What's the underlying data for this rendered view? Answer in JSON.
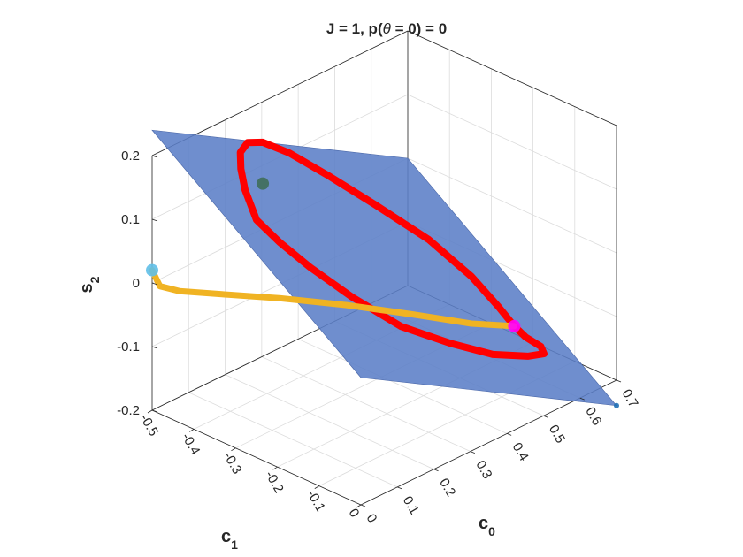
{
  "chart_data": {
    "type": "surface3d",
    "title": {
      "prefix": "J = 1, p(",
      "symbol": "θ",
      "suffix": " = 0) = 0"
    },
    "xlabel": {
      "base": "c",
      "sub": "0"
    },
    "ylabel": {
      "base": "c",
      "sub": "1"
    },
    "zlabel": {
      "base": "s",
      "sub": "2"
    },
    "xlim": [
      0,
      0.7
    ],
    "ylim": [
      -0.5,
      0
    ],
    "zlim": [
      -0.2,
      0.2
    ],
    "xticks": [
      "0",
      "0.1",
      "0.2",
      "0.3",
      "0.4",
      "0.5",
      "0.6",
      "0.7"
    ],
    "yticks": [
      "-0.5",
      "-0.4",
      "-0.3",
      "-0.2",
      "-0.1",
      "0"
    ],
    "zticks": [
      "-0.2",
      "-0.1",
      "0",
      "0.1",
      "0.2"
    ],
    "grid": true,
    "surface": {
      "color": "#5b7ec7",
      "corners": [
        {
          "c0": 0.0,
          "c1": 0.0,
          "s2": 0.0
        },
        {
          "c0": 0.0,
          "c1": -0.5,
          "s2": 0.24
        },
        {
          "c0": 0.7,
          "c1": -0.5,
          "s2": 0.0
        },
        {
          "c0": 0.7,
          "c1": 0.0,
          "s2": -0.24
        }
      ]
    },
    "series": [
      {
        "color": "#ff0000",
        "style": "loop",
        "points": [
          [
            0.5,
            -0.07,
            -0.08
          ],
          [
            0.48,
            -0.09,
            -0.05
          ],
          [
            0.44,
            -0.12,
            0.0
          ],
          [
            0.38,
            -0.17,
            0.06
          ],
          [
            0.3,
            -0.23,
            0.12
          ],
          [
            0.23,
            -0.28,
            0.17
          ],
          [
            0.17,
            -0.32,
            0.21
          ],
          [
            0.12,
            -0.34,
            0.235
          ],
          [
            0.09,
            -0.35,
            0.24
          ],
          [
            0.07,
            -0.35,
            0.23
          ],
          [
            0.06,
            -0.34,
            0.21
          ],
          [
            0.06,
            -0.33,
            0.18
          ],
          [
            0.08,
            -0.32,
            0.13
          ],
          [
            0.12,
            -0.3,
            0.09
          ],
          [
            0.18,
            -0.28,
            0.04
          ],
          [
            0.26,
            -0.25,
            -0.02
          ],
          [
            0.35,
            -0.21,
            -0.08
          ],
          [
            0.44,
            -0.17,
            -0.12
          ],
          [
            0.51,
            -0.13,
            -0.145
          ],
          [
            0.56,
            -0.09,
            -0.15
          ],
          [
            0.57,
            -0.06,
            -0.14
          ],
          [
            0.55,
            -0.05,
            -0.12
          ],
          [
            0.52,
            -0.06,
            -0.1
          ],
          [
            0.5,
            -0.07,
            -0.08
          ]
        ]
      },
      {
        "color": "#f0b323",
        "style": "line",
        "points": [
          [
            0.0,
            -0.5,
            0.02
          ],
          [
            0.01,
            -0.49,
            -0.005
          ],
          [
            0.04,
            -0.47,
            -0.015
          ],
          [
            0.1,
            -0.42,
            -0.022
          ],
          [
            0.18,
            -0.35,
            -0.03
          ],
          [
            0.27,
            -0.27,
            -0.042
          ],
          [
            0.36,
            -0.19,
            -0.058
          ],
          [
            0.44,
            -0.12,
            -0.074
          ],
          [
            0.5,
            -0.07,
            -0.08
          ]
        ]
      }
    ],
    "markers": [
      {
        "color": "#5fbfe8",
        "point": [
          0.0,
          -0.5,
          0.02
        ]
      },
      {
        "color": "#3f6e5a",
        "point": [
          0.12,
          -0.34,
          0.17
        ]
      },
      {
        "color": "#ff00ff",
        "point": [
          0.5,
          -0.07,
          -0.08
        ]
      },
      {
        "color": "#1f6fb5",
        "point": [
          0.7,
          0.0,
          -0.24
        ]
      }
    ]
  }
}
